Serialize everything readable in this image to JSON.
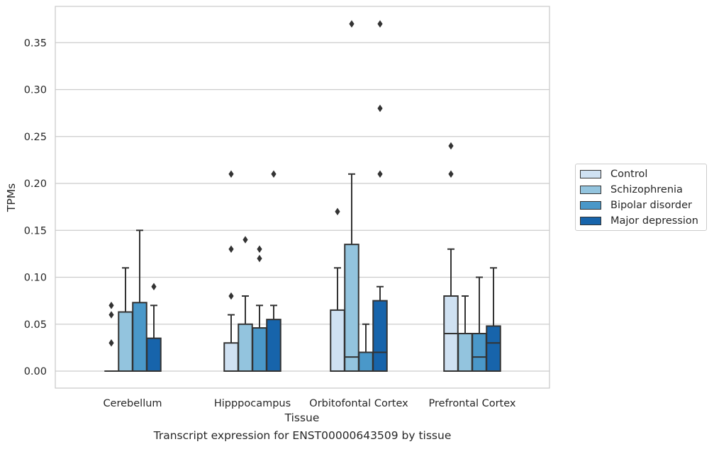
{
  "chart_data": {
    "type": "boxplot",
    "xlabel": "Tissue",
    "ylabel": "TPMs",
    "caption": "Transcript expression for ENST00000643509 by tissue",
    "ylim": [
      -0.018,
      0.388
    ],
    "yticks": [
      "0.00",
      "0.05",
      "0.10",
      "0.15",
      "0.20",
      "0.25",
      "0.30",
      "0.35"
    ],
    "grid": true,
    "legend_position": "right",
    "categories": [
      "Cerebellum",
      "Hipppocampus",
      "Orbitofontal Cortex",
      "Prefrontal Cortex"
    ],
    "series": [
      {
        "name": "Control",
        "color": "#cfe1f2",
        "boxes": [
          {
            "q1": 0.0,
            "median": 0.0,
            "q3": 0.0,
            "whisker_low": 0.0,
            "whisker_high": 0.0,
            "outliers": [
              0.03,
              0.06,
              0.07
            ]
          },
          {
            "q1": 0.0,
            "median": 0.0,
            "q3": 0.03,
            "whisker_low": 0.0,
            "whisker_high": 0.06,
            "outliers": [
              0.08,
              0.13,
              0.21
            ]
          },
          {
            "q1": 0.0,
            "median": 0.0,
            "q3": 0.065,
            "whisker_low": 0.0,
            "whisker_high": 0.11,
            "outliers": [
              0.17
            ]
          },
          {
            "q1": 0.0,
            "median": 0.04,
            "q3": 0.08,
            "whisker_low": 0.0,
            "whisker_high": 0.13,
            "outliers": [
              0.21,
              0.24
            ]
          }
        ]
      },
      {
        "name": "Schizophrenia",
        "color": "#93c4de",
        "boxes": [
          {
            "q1": 0.0,
            "median": 0.0,
            "q3": 0.063,
            "whisker_low": 0.0,
            "whisker_high": 0.11,
            "outliers": []
          },
          {
            "q1": 0.0,
            "median": 0.0,
            "q3": 0.05,
            "whisker_low": 0.0,
            "whisker_high": 0.08,
            "outliers": [
              0.14
            ]
          },
          {
            "q1": 0.0,
            "median": 0.015,
            "q3": 0.135,
            "whisker_low": 0.0,
            "whisker_high": 0.21,
            "outliers": [
              0.37
            ]
          },
          {
            "q1": 0.0,
            "median": 0.04,
            "q3": 0.04,
            "whisker_low": 0.0,
            "whisker_high": 0.08,
            "outliers": []
          }
        ]
      },
      {
        "name": "Bipolar disorder",
        "color": "#4a98c9",
        "boxes": [
          {
            "q1": 0.0,
            "median": 0.0,
            "q3": 0.073,
            "whisker_low": 0.0,
            "whisker_high": 0.15,
            "outliers": []
          },
          {
            "q1": 0.0,
            "median": 0.0,
            "q3": 0.046,
            "whisker_low": 0.0,
            "whisker_high": 0.07,
            "outliers": [
              0.12,
              0.13
            ]
          },
          {
            "q1": 0.0,
            "median": 0.0,
            "q3": 0.02,
            "whisker_low": 0.0,
            "whisker_high": 0.05,
            "outliers": []
          },
          {
            "q1": 0.0,
            "median": 0.015,
            "q3": 0.04,
            "whisker_low": 0.0,
            "whisker_high": 0.1,
            "outliers": []
          }
        ]
      },
      {
        "name": "Major depression",
        "color": "#1764ab",
        "boxes": [
          {
            "q1": 0.0,
            "median": 0.0,
            "q3": 0.035,
            "whisker_low": 0.0,
            "whisker_high": 0.07,
            "outliers": [
              0.09
            ]
          },
          {
            "q1": 0.0,
            "median": 0.0,
            "q3": 0.055,
            "whisker_low": 0.0,
            "whisker_high": 0.07,
            "outliers": [
              0.21
            ]
          },
          {
            "q1": 0.0,
            "median": 0.02,
            "q3": 0.075,
            "whisker_low": 0.0,
            "whisker_high": 0.09,
            "outliers": [
              0.21,
              0.28,
              0.37
            ]
          },
          {
            "q1": 0.0,
            "median": 0.03,
            "q3": 0.048,
            "whisker_low": 0.0,
            "whisker_high": 0.11,
            "outliers": []
          }
        ]
      }
    ]
  }
}
